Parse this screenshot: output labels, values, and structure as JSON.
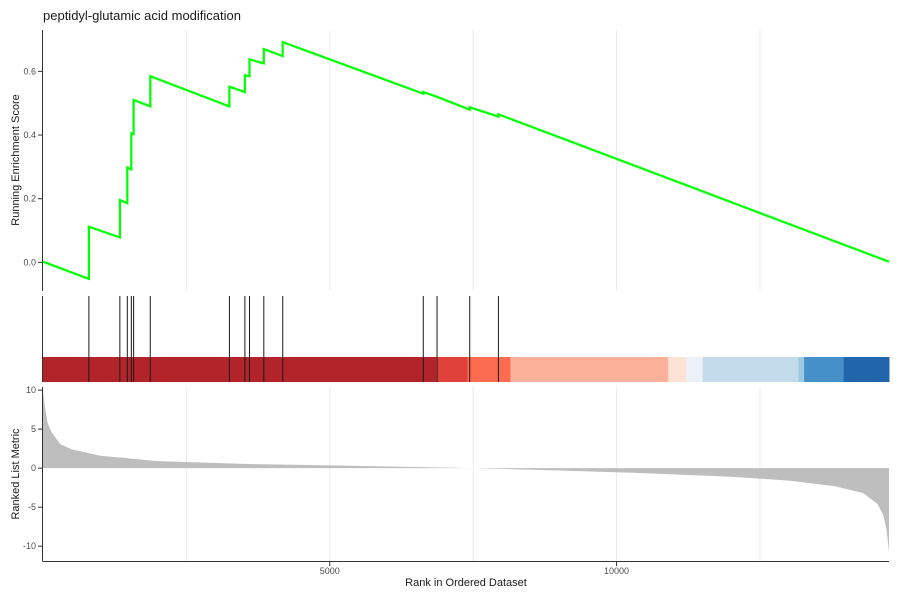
{
  "chart_data": {
    "type": "line",
    "title": "peptidyl-glutamic acid modification",
    "xlabel": "Rank in Ordered Dataset",
    "x_ticks": [
      5000,
      10000
    ],
    "xlim": [
      0,
      14750
    ],
    "panels": {
      "running_score": {
        "ylabel": "Running Enrichment Score",
        "y_ticks": [
          0.0,
          0.2,
          0.4,
          0.6
        ],
        "ylim": [
          -0.09,
          0.73
        ],
        "line_color": "#00ff00",
        "points": [
          [
            0,
            0.002
          ],
          [
            800,
            -0.052
          ],
          [
            800,
            0.112
          ],
          [
            1340,
            0.078
          ],
          [
            1340,
            0.196
          ],
          [
            1470,
            0.186
          ],
          [
            1470,
            0.298
          ],
          [
            1540,
            0.292
          ],
          [
            1540,
            0.405
          ],
          [
            1580,
            0.403
          ],
          [
            1580,
            0.51
          ],
          [
            1870,
            0.49
          ],
          [
            1870,
            0.585
          ],
          [
            3250,
            0.49
          ],
          [
            3250,
            0.552
          ],
          [
            3520,
            0.535
          ],
          [
            3520,
            0.588
          ],
          [
            3600,
            0.585
          ],
          [
            3600,
            0.638
          ],
          [
            3850,
            0.625
          ],
          [
            3850,
            0.67
          ],
          [
            4180,
            0.648
          ],
          [
            4180,
            0.692
          ],
          [
            6630,
            0.53
          ],
          [
            6630,
            0.535
          ],
          [
            6870,
            0.52
          ],
          [
            6870,
            0.52
          ],
          [
            7440,
            0.48
          ],
          [
            7440,
            0.487
          ],
          [
            7940,
            0.458
          ],
          [
            7940,
            0.465
          ],
          [
            14750,
            0.002
          ]
        ]
      },
      "hits": {
        "positions": [
          800,
          1340,
          1470,
          1540,
          1580,
          1870,
          3250,
          3520,
          3600,
          3850,
          4180,
          6630,
          6870,
          7440,
          7940
        ]
      },
      "color_bar": {
        "segments": [
          {
            "from": 0,
            "to": 6850,
            "color": "#b2242a"
          },
          {
            "from": 6850,
            "to": 7400,
            "color": "#e0403a"
          },
          {
            "from": 7400,
            "to": 8150,
            "color": "#fb6b4f"
          },
          {
            "from": 8150,
            "to": 10900,
            "color": "#fcb29a"
          },
          {
            "from": 10900,
            "to": 11220,
            "color": "#fde2d6"
          },
          {
            "from": 11220,
            "to": 11500,
            "color": "#eaf1f8"
          },
          {
            "from": 11500,
            "to": 13170,
            "color": "#c3dbea"
          },
          {
            "from": 13170,
            "to": 13270,
            "color": "#9ecae1"
          },
          {
            "from": 13270,
            "to": 13960,
            "color": "#4690c8"
          },
          {
            "from": 13960,
            "to": 14750,
            "color": "#2166ac"
          }
        ]
      },
      "ranked_metric": {
        "ylabel": "Ranked List Metric",
        "y_ticks": [
          10,
          5,
          0,
          -5,
          -10
        ],
        "ylim": [
          -11.9,
          10.4
        ],
        "fill_color": "#bebebe",
        "points": [
          [
            0,
            10.0
          ],
          [
            30,
            8.0
          ],
          [
            80,
            5.8
          ],
          [
            150,
            4.6
          ],
          [
            300,
            3.1
          ],
          [
            500,
            2.4
          ],
          [
            1000,
            1.6
          ],
          [
            2000,
            0.9
          ],
          [
            3500,
            0.55
          ],
          [
            5000,
            0.35
          ],
          [
            6500,
            0.15
          ],
          [
            7500,
            0.0
          ],
          [
            9000,
            -0.3
          ],
          [
            10500,
            -0.65
          ],
          [
            12000,
            -1.1
          ],
          [
            13000,
            -1.6
          ],
          [
            13800,
            -2.3
          ],
          [
            14300,
            -3.2
          ],
          [
            14550,
            -4.6
          ],
          [
            14650,
            -6.0
          ],
          [
            14710,
            -8.0
          ],
          [
            14750,
            -10.8
          ]
        ]
      }
    }
  }
}
